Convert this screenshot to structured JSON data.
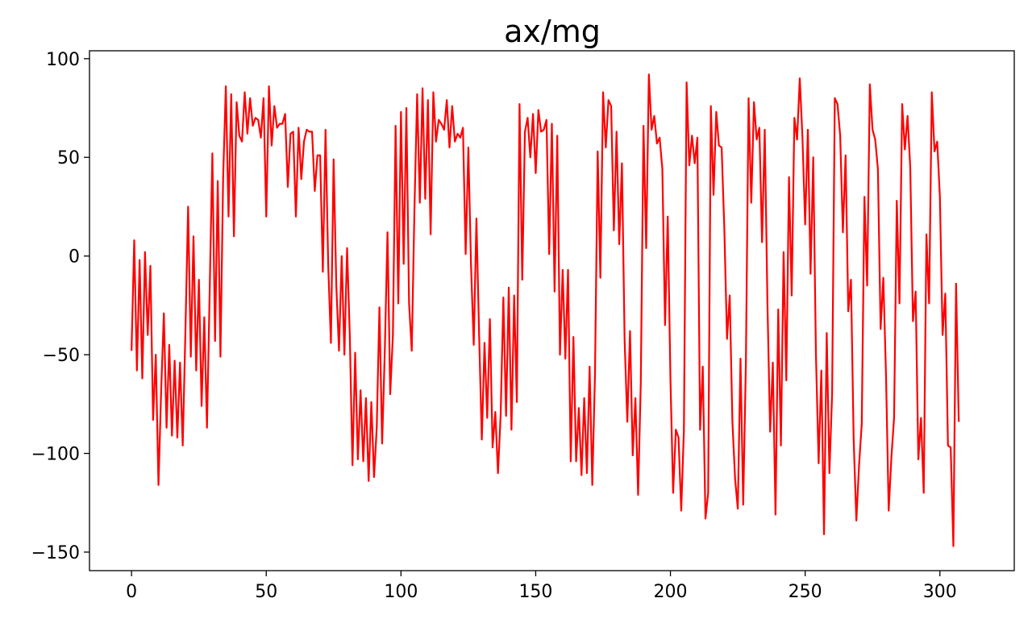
{
  "chart_data": {
    "type": "line",
    "title": "ax/mg",
    "xlabel": "",
    "ylabel": "",
    "xlim": [
      -15.6,
      327.6
    ],
    "ylim": [
      -159.4,
      104.0
    ],
    "grid": false,
    "legend": "none",
    "x_ticks": [
      0,
      50,
      100,
      150,
      200,
      250,
      300
    ],
    "y_ticks": [
      100,
      50,
      0,
      -50,
      -100,
      -150
    ],
    "x_tick_labels": [
      "0",
      "50",
      "100",
      "150",
      "200",
      "250",
      "300"
    ],
    "y_tick_labels": [
      "100",
      "50",
      "0",
      "−50",
      "−100",
      "−150"
    ],
    "series": [
      {
        "color": "#ff0000",
        "x_start": 0,
        "x_step": 1,
        "values": [
          -48,
          8,
          -58,
          -2,
          -62,
          2,
          -40,
          -5,
          -83,
          -50,
          -116,
          -68,
          -29,
          -87,
          -45,
          -91,
          -53,
          -92,
          -54,
          -96,
          -38,
          25,
          -51,
          10,
          -58,
          -12,
          -76,
          -31,
          -87,
          -18,
          52,
          -43,
          38,
          -51,
          40,
          86,
          20,
          82,
          10,
          78,
          61,
          58,
          83,
          62,
          80,
          66,
          70,
          69,
          60,
          80,
          20,
          86,
          56,
          76,
          65,
          67,
          67,
          72,
          35,
          62,
          63,
          20,
          65,
          39,
          58,
          64,
          63,
          63,
          33,
          51,
          51,
          -8,
          64,
          -5,
          -44,
          49,
          -15,
          -48,
          0,
          -50,
          4,
          -40,
          -106,
          -49,
          -103,
          -68,
          -104,
          -72,
          -114,
          -74,
          -112,
          -87,
          -26,
          -95,
          -48,
          12,
          -70,
          -40,
          66,
          -24,
          73,
          -4,
          75,
          -24,
          -48,
          24,
          82,
          27,
          85,
          29,
          79,
          11,
          83,
          58,
          69,
          67,
          64,
          79,
          55,
          76,
          58,
          62,
          60,
          65,
          1,
          55,
          -5,
          -45,
          19,
          -40,
          -93,
          -44,
          -82,
          -32,
          -97,
          -79,
          -110,
          -80,
          -21,
          -81,
          -16,
          -88,
          -20,
          -74,
          77,
          -12,
          63,
          70,
          50,
          72,
          42,
          74,
          63,
          64,
          69,
          1,
          67,
          -18,
          61,
          -50,
          -7,
          -52,
          -7,
          -104,
          -41,
          -104,
          -77,
          -111,
          -72,
          -110,
          -56,
          -116,
          -60,
          53,
          -11,
          83,
          55,
          79,
          76,
          13,
          63,
          6,
          47,
          -43,
          -84,
          -38,
          -101,
          -72,
          -121,
          -64,
          66,
          4,
          92,
          64,
          71,
          57,
          60,
          44,
          -35,
          20,
          -62,
          -120,
          -88,
          -92,
          -129,
          -88,
          88,
          46,
          61,
          47,
          60,
          -88,
          -56,
          -133,
          -120,
          76,
          31,
          73,
          56,
          55,
          14,
          -42,
          -20,
          -84,
          -113,
          -128,
          -52,
          -126,
          -54,
          80,
          27,
          78,
          59,
          65,
          7,
          64,
          -24,
          -89,
          -54,
          -131,
          -27,
          -96,
          2,
          -63,
          40,
          -20,
          70,
          59,
          90,
          60,
          16,
          64,
          -9,
          50,
          -50,
          -105,
          -58,
          -141,
          -39,
          -110,
          -70,
          80,
          77,
          61,
          12,
          51,
          -28,
          -12,
          -93,
          -134,
          -106,
          -85,
          30,
          -15,
          87,
          64,
          59,
          44,
          -37,
          -11,
          -60,
          -129,
          -102,
          -82,
          28,
          -24,
          77,
          54,
          71,
          45,
          -33,
          -18,
          -103,
          -82,
          -120,
          11,
          -24,
          83,
          53,
          58,
          30,
          -40,
          -19,
          -96,
          -97,
          -147,
          -14,
          -84
        ]
      }
    ]
  }
}
